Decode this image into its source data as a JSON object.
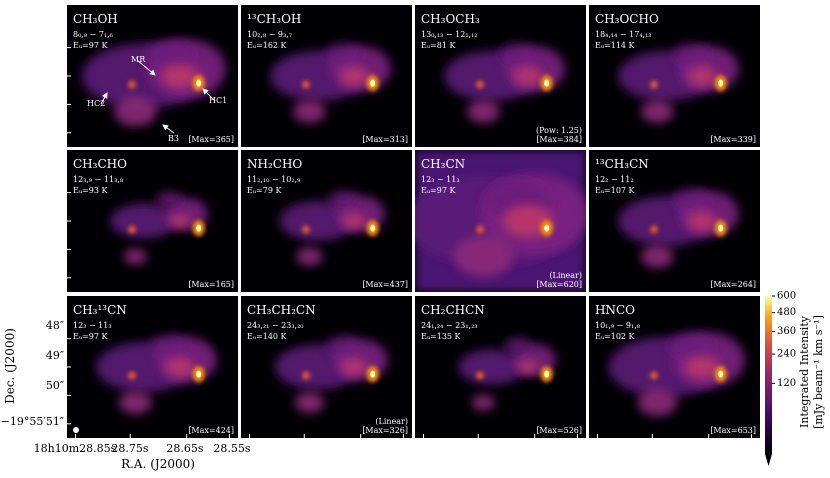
{
  "figure": {
    "panels": [
      {
        "molecule": "CH₃OH",
        "transition": "8₀,₈ − 7₁,₆",
        "energy": "Eᵤ=97 K",
        "max": "[Max=365]",
        "annotations": [
          "MR",
          "HC2",
          "HC1",
          "B3"
        ]
      },
      {
        "molecule": "¹³CH₃OH",
        "transition": "10₂,₈ − 9₃,₇",
        "energy": "Eᵤ=162 K",
        "max": "[Max=313]"
      },
      {
        "molecule": "CH₃OCH₃",
        "transition": "13₀,₁₃ − 12₁,₁₂",
        "energy": "Eᵤ=81 K",
        "note": "(Pow: 1.25)",
        "max": "[Max=384]"
      },
      {
        "molecule": "CH₃OCHO",
        "transition": "18₄,₁₄ − 17₄,₁₃",
        "energy": "Eᵤ=114 K",
        "max": "[Max=339]"
      },
      {
        "molecule": "CH₃CHO",
        "transition": "12₃,₉ − 11₃,₈",
        "energy": "Eᵤ=93 K",
        "max": "[Max=165]"
      },
      {
        "molecule": "NH₂CHO",
        "transition": "11₂,₁₀ − 10₂,₉",
        "energy": "Eᵤ=79 K",
        "max": "[Max=437]"
      },
      {
        "molecule": "CH₃CN",
        "transition": "12₃ − 11₃",
        "energy": "Eᵤ=97 K",
        "note": "(Linear)",
        "max": "[Max=620]"
      },
      {
        "molecule": "¹³CH₃CN",
        "transition": "12₂ − 11₂",
        "energy": "Eᵤ=107 K",
        "max": "[Max=264]"
      },
      {
        "molecule": "CH₃¹³CN",
        "transition": "12₃ − 11₃",
        "energy": "Eᵤ=97 K",
        "max": "[Max=424]"
      },
      {
        "molecule": "CH₃CH₂CN",
        "transition": "24₃,₂₁ − 23₃,₂₀",
        "energy": "Eᵤ=140 K",
        "note": "(Linear)",
        "max": "[Max=326]"
      },
      {
        "molecule": "CH₂CHCN",
        "transition": "24₁,₂₄ − 23₁,₂₃",
        "energy": "Eᵤ=135 K",
        "max": "[Max=526]"
      },
      {
        "molecule": "HNCO",
        "transition": "10₁,₉ − 9₁,₈",
        "energy": "Eᵤ=102 K",
        "max": "[Max=653]"
      }
    ],
    "xlabel": "R.A. (J2000)",
    "ylabel": "Dec. (J2000)",
    "xticks": [
      "18h10m28.85s",
      "28.75s",
      "28.65s",
      "28.55s"
    ],
    "yticks": [
      "48″",
      "49″",
      "50″",
      "−19°55′51″"
    ],
    "colorbar": {
      "label": "Integrated Intensity",
      "unit": "[mJy beam⁻¹ km s⁻¹]",
      "scale": "sqrt",
      "lim": [
        0,
        600
      ],
      "ticks": [
        120,
        240,
        360,
        480,
        600
      ]
    }
  }
}
